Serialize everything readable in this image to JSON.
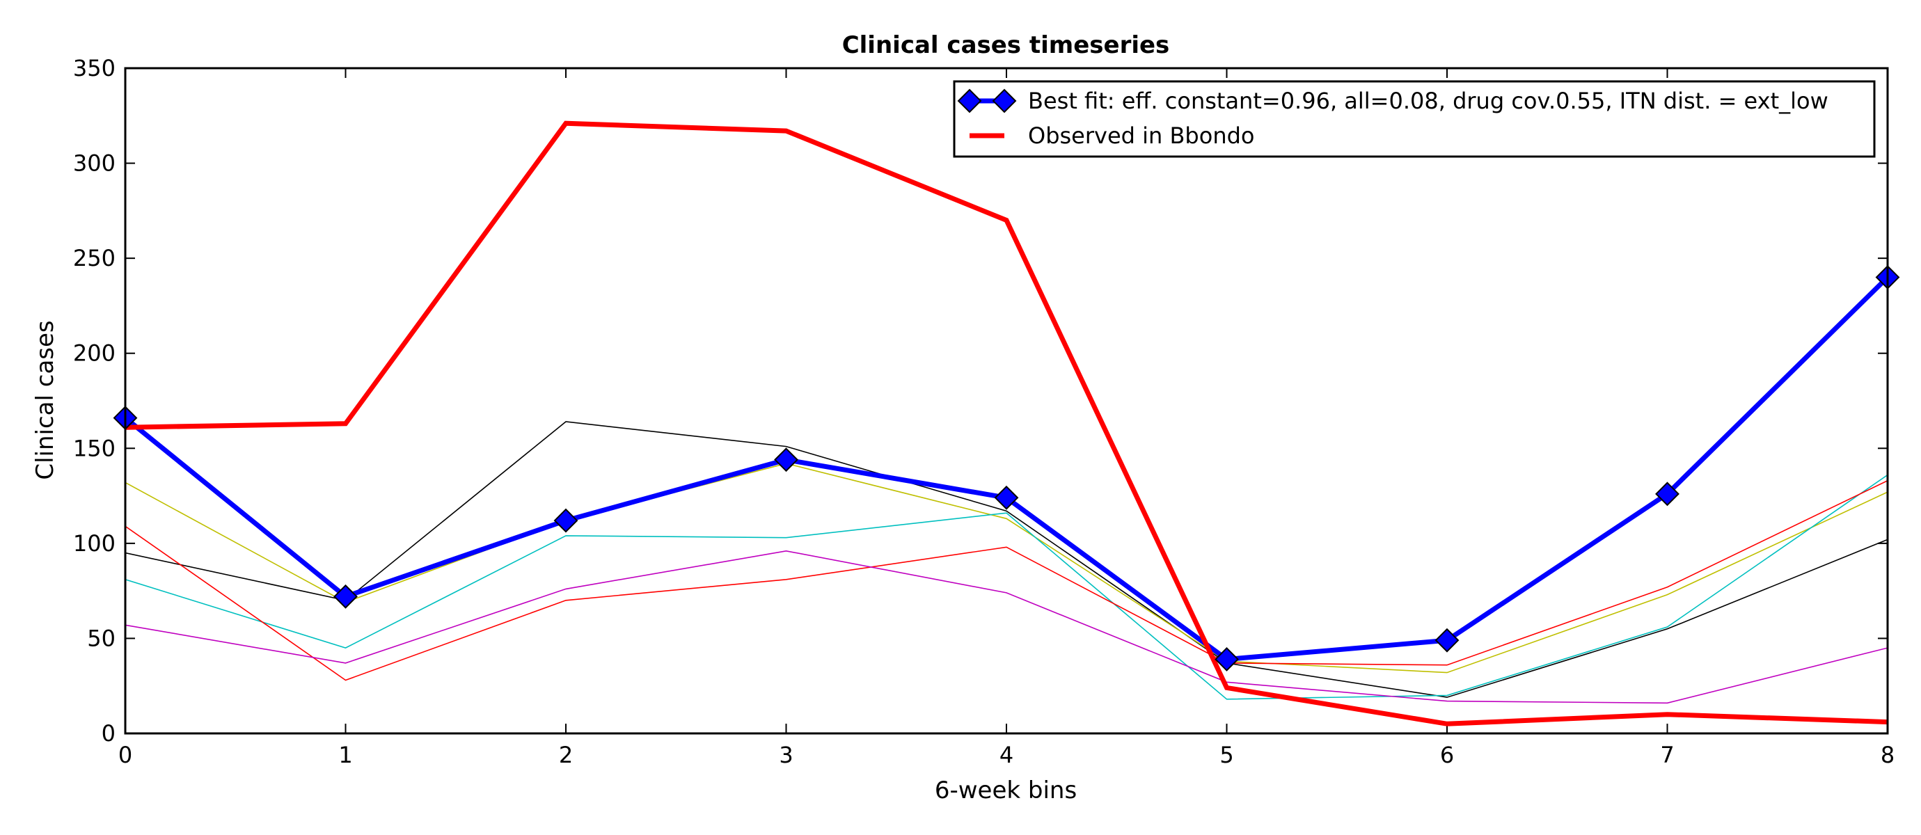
{
  "chart_data": {
    "type": "line",
    "title": "Clinical cases timeseries",
    "xlabel": "6-week bins",
    "ylabel": "Clinical cases",
    "xlim": [
      0,
      8
    ],
    "ylim": [
      0,
      350
    ],
    "xticks": [
      "0",
      "1",
      "2",
      "3",
      "4",
      "5",
      "6",
      "7",
      "8"
    ],
    "yticks": [
      "0",
      "50",
      "100",
      "150",
      "200",
      "250",
      "300",
      "350"
    ],
    "grid": false,
    "legend_position": "top-right",
    "x": [
      0,
      1,
      2,
      3,
      4,
      5,
      6,
      7,
      8
    ],
    "series": [
      {
        "name": "",
        "color": "#000000",
        "width": 1.6,
        "values": [
          95,
          70,
          164,
          151,
          117,
          37,
          19,
          55,
          102
        ]
      },
      {
        "name": "",
        "color": "#bfbf00",
        "width": 1.6,
        "values": [
          132,
          69,
          112,
          142,
          113,
          38,
          32,
          73,
          127
        ]
      },
      {
        "name": "",
        "color": "#00bfbf",
        "width": 1.6,
        "values": [
          81,
          45,
          104,
          103,
          116,
          18,
          20,
          56,
          136
        ]
      },
      {
        "name": "",
        "color": "#ff0000",
        "width": 1.6,
        "values": [
          109,
          28,
          70,
          81,
          98,
          37,
          36,
          77,
          133
        ]
      },
      {
        "name": "",
        "color": "#bf00bf",
        "width": 1.6,
        "values": [
          57,
          37,
          76,
          96,
          74,
          27,
          17,
          16,
          45
        ]
      },
      {
        "name": "Best fit: eff. constant=0.96, all=0.08, drug cov.0.55, ITN dist. = ext_low",
        "color": "#0000ff",
        "width": 7,
        "marker": "diamond",
        "values": [
          166,
          72,
          112,
          144,
          124,
          39,
          49,
          126,
          240
        ]
      },
      {
        "name": "Observed in Bbondo",
        "color": "#ff0000",
        "width": 7,
        "values": [
          161,
          163,
          321,
          317,
          270,
          24,
          5,
          10,
          6
        ]
      }
    ]
  }
}
